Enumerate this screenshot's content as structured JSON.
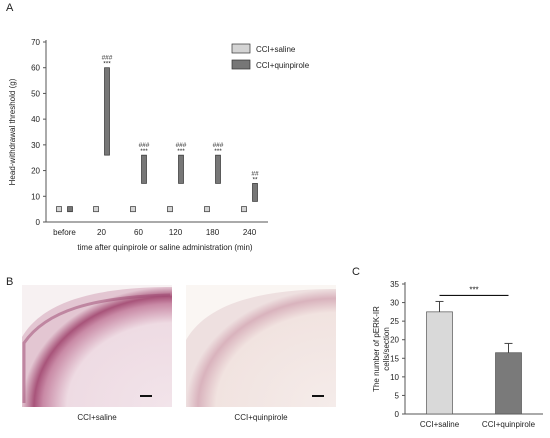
{
  "panels": {
    "a": "A",
    "b": "B",
    "c": "C"
  },
  "micrographs": [
    {
      "caption": "CCI+saline"
    },
    {
      "caption": "CCI+quinpirole"
    }
  ],
  "chart_data": [
    {
      "type": "bar",
      "subtype": "floating-range",
      "ylabel": "Head-withdrawal threshold (g)",
      "xlabel": "time after quinpirole or saline administration (min)",
      "ylim": [
        0,
        70
      ],
      "yticks": [
        0,
        10,
        20,
        30,
        40,
        50,
        60,
        70
      ],
      "categories": [
        "before",
        "20",
        "60",
        "120",
        "180",
        "240"
      ],
      "legend_position": "top-right",
      "series": [
        {
          "name": "CCI+saline",
          "color": "#d4d4d4",
          "ranges": [
            [
              4,
              6
            ],
            [
              4,
              6
            ],
            [
              4,
              6
            ],
            [
              4,
              6
            ],
            [
              4,
              6
            ],
            [
              4,
              6
            ]
          ],
          "annotations": [
            "",
            "",
            "",
            "",
            "",
            ""
          ]
        },
        {
          "name": "CCI+quinpirole",
          "color": "#777777",
          "ranges": [
            [
              4,
              6
            ],
            [
              26,
              60
            ],
            [
              15,
              26
            ],
            [
              15,
              26
            ],
            [
              15,
              26
            ],
            [
              8,
              15
            ]
          ],
          "annotations": [
            [],
            [
              "###",
              "***"
            ],
            [
              "###",
              "***"
            ],
            [
              "###",
              "***"
            ],
            [
              "###",
              "***"
            ],
            [
              "##",
              "**"
            ]
          ]
        }
      ]
    },
    {
      "type": "bar",
      "ylabel": "The number of pERK-IR cells/section",
      "ylim": [
        0,
        35
      ],
      "yticks": [
        0,
        5,
        10,
        15,
        20,
        25,
        30,
        35
      ],
      "categories": [
        "CCI+saline",
        "CCI+quinpirole"
      ],
      "values": [
        27.5,
        16.5
      ],
      "errors": [
        2.8,
        2.5
      ],
      "colors": [
        "#d9d9d9",
        "#7a7a7a"
      ],
      "significance": "***"
    }
  ]
}
